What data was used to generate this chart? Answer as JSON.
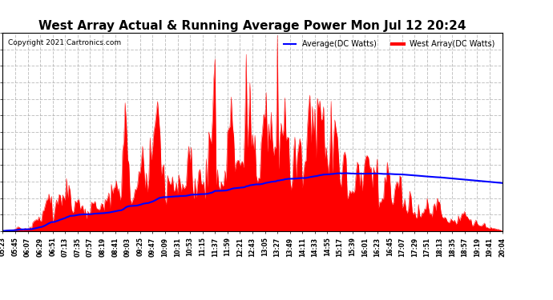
{
  "title": "West Array Actual & Running Average Power Mon Jul 12 20:24",
  "copyright": "Copyright 2021 Cartronics.com",
  "legend_avg": "Average(DC Watts)",
  "legend_west": "West Array(DC Watts)",
  "legend_avg_color": "blue",
  "legend_west_color": "red",
  "ymax": 961.9,
  "ymin": 0.0,
  "yticks": [
    0.0,
    80.2,
    160.3,
    240.5,
    320.6,
    400.8,
    480.9,
    561.1,
    641.2,
    721.4,
    801.6,
    881.7,
    961.9
  ],
  "bg_color": "#ffffff",
  "grid_color": "#aaaaaa",
  "title_color": "#000000",
  "fill_color": "red",
  "avg_line_color": "blue"
}
